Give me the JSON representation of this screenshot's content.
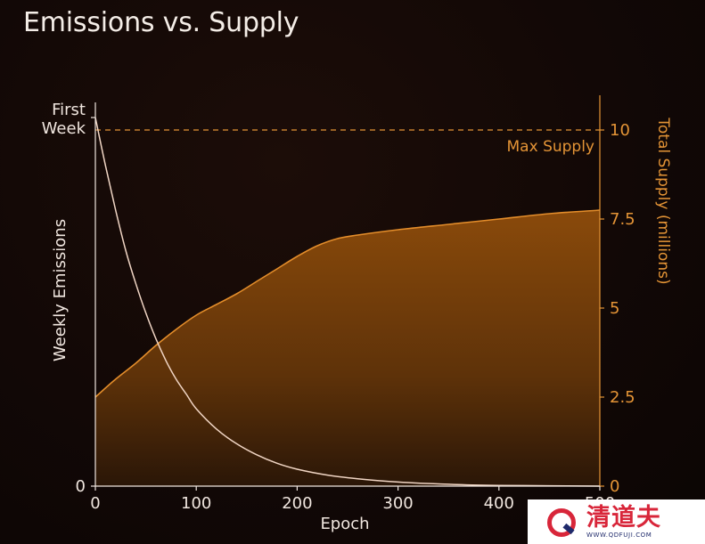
{
  "title": "Emissions vs. Supply",
  "colors": {
    "emissions": "#f0d5c4",
    "supply": "#e38d2b",
    "left_axis": "#f0e6df",
    "right_axis": "#e49436"
  },
  "chart_data": {
    "type": "area",
    "title": "Emissions vs. Supply",
    "xlabel": "Epoch",
    "ylabel_left": "Weekly Emissions",
    "ylabel_right": "Total Supply (millions)",
    "xlim": [
      0,
      500
    ],
    "x_ticks": [
      "0",
      "100",
      "200",
      "300",
      "400",
      "500"
    ],
    "left_ticks": [
      "0",
      "First\nWeek"
    ],
    "right_ylim": [
      0,
      10
    ],
    "right_ticks": [
      "0",
      "2.5",
      "5",
      "7.5",
      "10"
    ],
    "max_supply": {
      "value": 10,
      "label": "Max Supply"
    },
    "series": [
      {
        "name": "Weekly Emissions",
        "axis": "left",
        "style": "line",
        "x": [
          0,
          10,
          20,
          30,
          40,
          50,
          60,
          70,
          80,
          90,
          100,
          120,
          140,
          160,
          180,
          200,
          230,
          260,
          300,
          350,
          400,
          450,
          500
        ],
        "values": [
          1.0,
          0.87,
          0.75,
          0.64,
          0.55,
          0.47,
          0.4,
          0.34,
          0.29,
          0.25,
          0.21,
          0.155,
          0.115,
          0.085,
          0.062,
          0.046,
          0.03,
          0.02,
          0.011,
          0.005,
          0.002,
          0.001,
          0.0
        ]
      },
      {
        "name": "Total Supply (millions)",
        "axis": "right",
        "style": "area",
        "x": [
          0,
          20,
          40,
          60,
          80,
          100,
          120,
          140,
          160,
          180,
          200,
          220,
          240,
          260,
          300,
          350,
          400,
          450,
          500
        ],
        "values": [
          2.5,
          3.0,
          3.45,
          3.95,
          4.4,
          4.8,
          5.1,
          5.4,
          5.75,
          6.1,
          6.45,
          6.75,
          6.95,
          7.05,
          7.2,
          7.35,
          7.5,
          7.65,
          7.75
        ]
      }
    ]
  },
  "watermark": {
    "name": "清道夫",
    "url": "WWW.QDFUJI.COM"
  }
}
